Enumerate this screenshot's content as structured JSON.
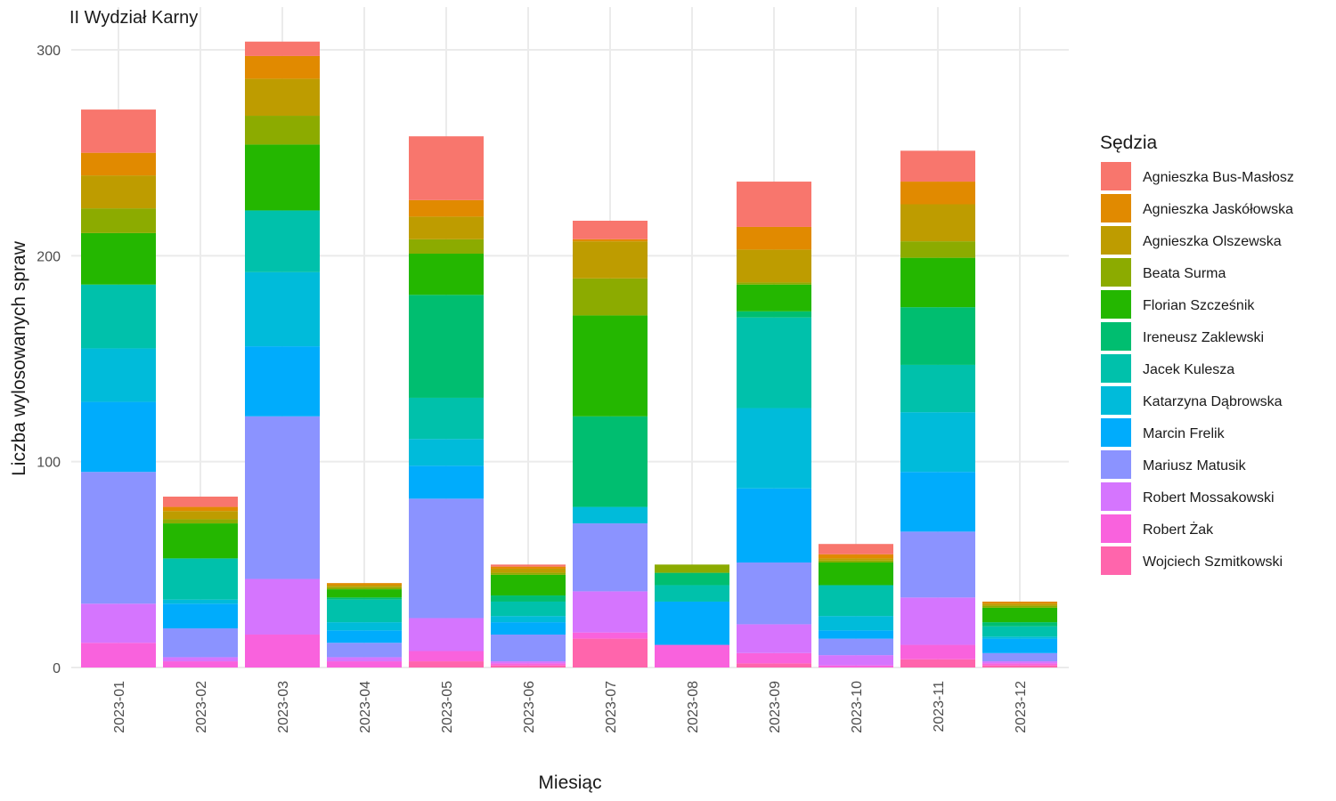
{
  "chart_data": {
    "type": "bar",
    "stacked": true,
    "title": "II Wydział Karny",
    "xlabel": "Miesiąc",
    "ylabel": "Liczba wylosowanych spraw",
    "ylim": [
      0,
      300
    ],
    "yticks": [
      0,
      100,
      200,
      300
    ],
    "grid": true,
    "legend_title": "Sędzia",
    "legend_position": "right",
    "categories": [
      "2023-01",
      "2023-02",
      "2023-03",
      "2023-04",
      "2023-05",
      "2023-06",
      "2023-07",
      "2023-08",
      "2023-09",
      "2023-10",
      "2023-11",
      "2023-12"
    ],
    "series": [
      {
        "name": "Agnieszka Bus-Masłosz",
        "color": "#F8766D",
        "values": [
          21,
          5,
          7,
          0,
          31,
          1,
          9,
          0,
          22,
          5,
          15,
          0
        ]
      },
      {
        "name": "Agnieszka Jaskółowska",
        "color": "#E18A00",
        "values": [
          11,
          2,
          11,
          1,
          8,
          1,
          1,
          0,
          11,
          2,
          11,
          1
        ]
      },
      {
        "name": "Agnieszka Olszewska",
        "color": "#BE9C00",
        "values": [
          16,
          4,
          18,
          1,
          11,
          2,
          18,
          0,
          16,
          1,
          18,
          1
        ]
      },
      {
        "name": "Beata Surma",
        "color": "#8CAB00",
        "values": [
          12,
          2,
          14,
          1,
          7,
          1,
          18,
          4,
          1,
          1,
          8,
          1
        ]
      },
      {
        "name": "Florian Szcześnik",
        "color": "#24B700",
        "values": [
          25,
          17,
          32,
          4,
          20,
          10,
          49,
          0,
          13,
          11,
          24,
          7
        ]
      },
      {
        "name": "Ireneusz Zaklewski",
        "color": "#00BE70",
        "values": [
          0,
          0,
          0,
          1,
          50,
          3,
          44,
          6,
          3,
          0,
          28,
          2
        ]
      },
      {
        "name": "Jacek Kulesza",
        "color": "#00C1AB",
        "values": [
          31,
          20,
          30,
          11,
          20,
          7,
          0,
          8,
          44,
          15,
          23,
          5
        ]
      },
      {
        "name": "Katarzyna Dąbrowska",
        "color": "#00BBDA",
        "values": [
          26,
          2,
          36,
          4,
          13,
          3,
          8,
          0,
          39,
          7,
          29,
          1
        ]
      },
      {
        "name": "Marcin Frelik",
        "color": "#00ACFC",
        "values": [
          34,
          12,
          34,
          6,
          16,
          6,
          0,
          21,
          36,
          4,
          29,
          7
        ]
      },
      {
        "name": "Mariusz Matusik",
        "color": "#8B93FF",
        "values": [
          64,
          14,
          79,
          7,
          58,
          13,
          33,
          0,
          30,
          8,
          32,
          4
        ]
      },
      {
        "name": "Robert Mossakowski",
        "color": "#D575FE",
        "values": [
          19,
          2,
          27,
          2,
          16,
          1,
          20,
          0,
          14,
          5,
          23,
          1
        ]
      },
      {
        "name": "Robert Żak",
        "color": "#F962DD",
        "values": [
          12,
          3,
          16,
          3,
          5,
          1,
          3,
          11,
          5,
          1,
          7,
          1
        ]
      },
      {
        "name": "Wojciech Szmitkowski",
        "color": "#FF65AC",
        "values": [
          0,
          0,
          0,
          0,
          3,
          1,
          14,
          0,
          2,
          0,
          4,
          1
        ]
      }
    ]
  }
}
